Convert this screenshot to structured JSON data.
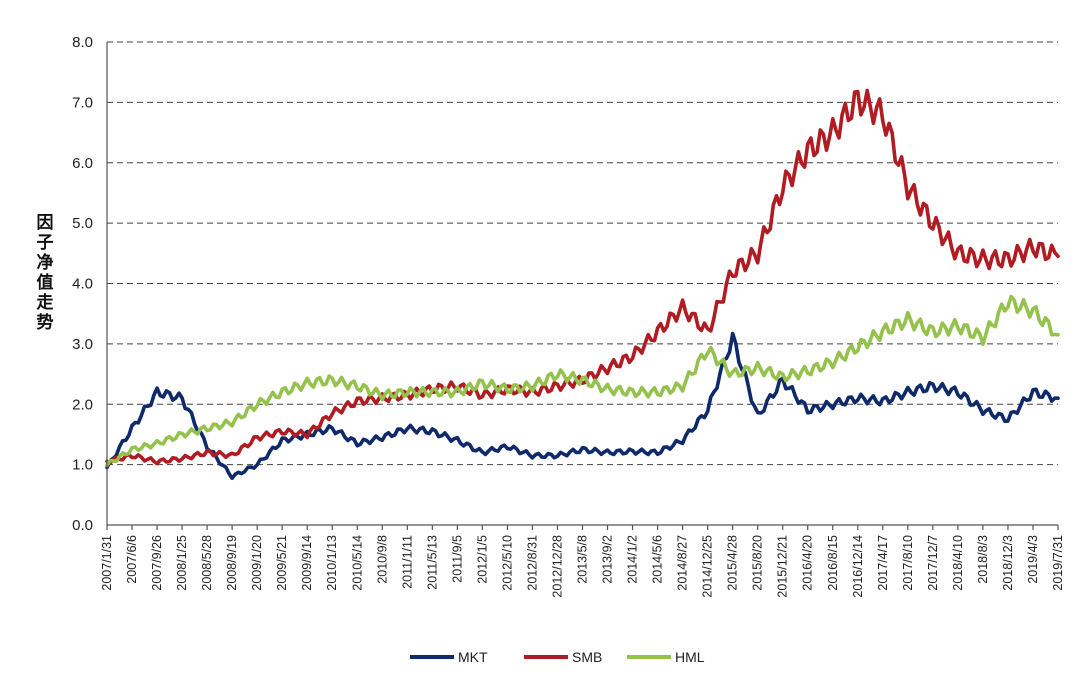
{
  "chart_data": {
    "type": "line",
    "ylabel": "因子净值走势",
    "xlabel": "",
    "ylim": [
      0,
      8
    ],
    "yticks": [
      "0.0",
      "1.0",
      "2.0",
      "3.0",
      "4.0",
      "5.0",
      "6.0",
      "7.0",
      "8.0"
    ],
    "grid": true,
    "legend_position": "bottom",
    "x": [
      "2007/1/31",
      "2007/6/6",
      "2007/9/26",
      "2008/1/25",
      "2008/5/28",
      "2008/9/19",
      "2009/1/20",
      "2009/5/21",
      "2009/9/14",
      "2010/1/13",
      "2010/5/14",
      "2010/9/8",
      "2011/1/11",
      "2011/5/13",
      "2011/9/5",
      "2012/1/5",
      "2012/5/10",
      "2012/8/31",
      "2012/12/28",
      "2013/5/8",
      "2013/9/2",
      "2014/1/2",
      "2014/5/6",
      "2014/8/27",
      "2014/12/25",
      "2015/4/28",
      "2015/8/20",
      "2015/12/21",
      "2016/4/20",
      "2016/8/15",
      "2016/12/14",
      "2017/4/17",
      "2017/8/10",
      "2017/12/7",
      "2018/4/10",
      "2018/8/3",
      "2018/12/3",
      "2019/4/3",
      "2019/7/31"
    ],
    "series": [
      {
        "name": "MKT",
        "color": "#0f2a6b",
        "values": [
          0.95,
          1.6,
          2.2,
          2.1,
          1.3,
          0.8,
          1.0,
          1.4,
          1.5,
          1.6,
          1.35,
          1.45,
          1.6,
          1.55,
          1.4,
          1.2,
          1.3,
          1.15,
          1.15,
          1.25,
          1.2,
          1.22,
          1.2,
          1.4,
          1.9,
          3.1,
          1.8,
          2.4,
          1.9,
          2.0,
          2.1,
          2.05,
          2.2,
          2.3,
          2.2,
          1.9,
          1.75,
          2.2,
          2.1
        ]
      },
      {
        "name": "SMB",
        "color": "#b01c22",
        "values": [
          1.05,
          1.15,
          1.05,
          1.1,
          1.2,
          1.15,
          1.45,
          1.55,
          1.5,
          1.85,
          2.05,
          2.1,
          2.15,
          2.25,
          2.3,
          2.15,
          2.25,
          2.2,
          2.3,
          2.4,
          2.6,
          2.8,
          3.2,
          3.6,
          3.2,
          4.2,
          4.5,
          5.6,
          6.2,
          6.5,
          7.05,
          6.8,
          5.6,
          5.0,
          4.5,
          4.4,
          4.4,
          4.6,
          4.45
        ]
      },
      {
        "name": "HML",
        "color": "#95c24d",
        "values": [
          1.0,
          1.25,
          1.35,
          1.5,
          1.6,
          1.7,
          2.0,
          2.2,
          2.35,
          2.4,
          2.3,
          2.15,
          2.2,
          2.2,
          2.2,
          2.35,
          2.25,
          2.3,
          2.5,
          2.4,
          2.25,
          2.2,
          2.2,
          2.3,
          2.9,
          2.5,
          2.6,
          2.45,
          2.55,
          2.7,
          2.95,
          3.2,
          3.4,
          3.2,
          3.3,
          3.1,
          3.7,
          3.55,
          3.15
        ]
      }
    ]
  }
}
